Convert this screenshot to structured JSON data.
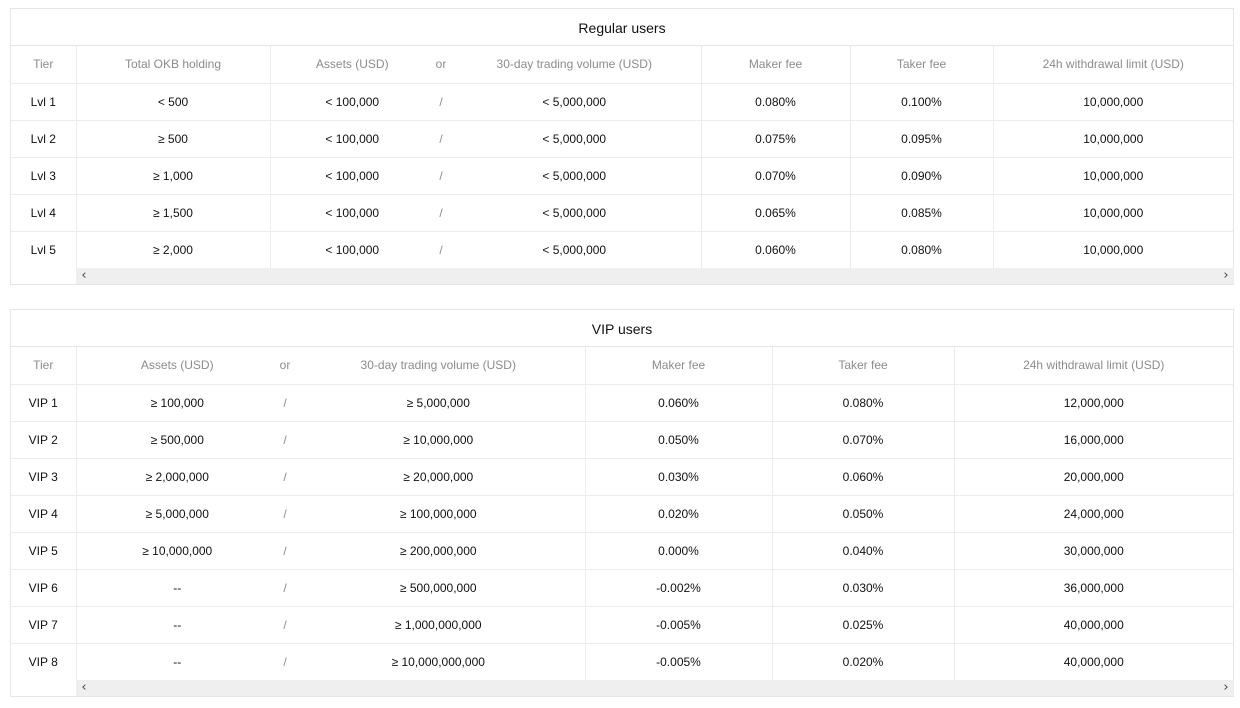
{
  "regular": {
    "title": "Regular users",
    "headers": {
      "tier": "Tier",
      "okb": "Total OKB holding",
      "assets": "Assets (USD)",
      "or": "or",
      "volume": "30-day trading volume (USD)",
      "maker": "Maker fee",
      "taker": "Taker fee",
      "withdrawal": "24h withdrawal limit (USD)"
    },
    "rows": [
      {
        "tier": "Lvl 1",
        "okb": "< 500",
        "assets": "< 100,000",
        "sep": "/",
        "volume": "< 5,000,000",
        "maker": "0.080%",
        "taker": "0.100%",
        "withdrawal": "10,000,000"
      },
      {
        "tier": "Lvl 2",
        "okb": "≥ 500",
        "assets": "< 100,000",
        "sep": "/",
        "volume": "< 5,000,000",
        "maker": "0.075%",
        "taker": "0.095%",
        "withdrawal": "10,000,000"
      },
      {
        "tier": "Lvl 3",
        "okb": "≥ 1,000",
        "assets": "< 100,000",
        "sep": "/",
        "volume": "< 5,000,000",
        "maker": "0.070%",
        "taker": "0.090%",
        "withdrawal": "10,000,000"
      },
      {
        "tier": "Lvl 4",
        "okb": "≥ 1,500",
        "assets": "< 100,000",
        "sep": "/",
        "volume": "< 5,000,000",
        "maker": "0.065%",
        "taker": "0.085%",
        "withdrawal": "10,000,000"
      },
      {
        "tier": "Lvl 5",
        "okb": "≥ 2,000",
        "assets": "< 100,000",
        "sep": "/",
        "volume": "< 5,000,000",
        "maker": "0.060%",
        "taker": "0.080%",
        "withdrawal": "10,000,000"
      }
    ]
  },
  "vip": {
    "title": "VIP users",
    "headers": {
      "tier": "Tier",
      "assets": "Assets (USD)",
      "or": "or",
      "volume": "30-day trading volume (USD)",
      "maker": "Maker fee",
      "taker": "Taker fee",
      "withdrawal": "24h withdrawal limit (USD)"
    },
    "rows": [
      {
        "tier": "VIP 1",
        "assets": "≥ 100,000",
        "sep": "/",
        "volume": "≥ 5,000,000",
        "maker": "0.060%",
        "taker": "0.080%",
        "withdrawal": "12,000,000"
      },
      {
        "tier": "VIP 2",
        "assets": "≥ 500,000",
        "sep": "/",
        "volume": "≥ 10,000,000",
        "maker": "0.050%",
        "taker": "0.070%",
        "withdrawal": "16,000,000"
      },
      {
        "tier": "VIP 3",
        "assets": "≥ 2,000,000",
        "sep": "/",
        "volume": "≥ 20,000,000",
        "maker": "0.030%",
        "taker": "0.060%",
        "withdrawal": "20,000,000"
      },
      {
        "tier": "VIP 4",
        "assets": "≥ 5,000,000",
        "sep": "/",
        "volume": "≥ 100,000,000",
        "maker": "0.020%",
        "taker": "0.050%",
        "withdrawal": "24,000,000"
      },
      {
        "tier": "VIP 5",
        "assets": "≥ 10,000,000",
        "sep": "/",
        "volume": "≥ 200,000,000",
        "maker": "0.000%",
        "taker": "0.040%",
        "withdrawal": "30,000,000"
      },
      {
        "tier": "VIP 6",
        "assets": "--",
        "sep": "/",
        "volume": "≥ 500,000,000",
        "maker": "-0.002%",
        "taker": "0.030%",
        "withdrawal": "36,000,000"
      },
      {
        "tier": "VIP 7",
        "assets": "--",
        "sep": "/",
        "volume": "≥ 1,000,000,000",
        "maker": "-0.005%",
        "taker": "0.025%",
        "withdrawal": "40,000,000"
      },
      {
        "tier": "VIP 8",
        "assets": "--",
        "sep": "/",
        "volume": "≥ 10,000,000,000",
        "maker": "-0.005%",
        "taker": "0.020%",
        "withdrawal": "40,000,000"
      }
    ]
  },
  "scrollbar": {
    "left_arrow_icon": "chevron-left-icon",
    "right_arrow_icon": "chevron-right-icon"
  }
}
